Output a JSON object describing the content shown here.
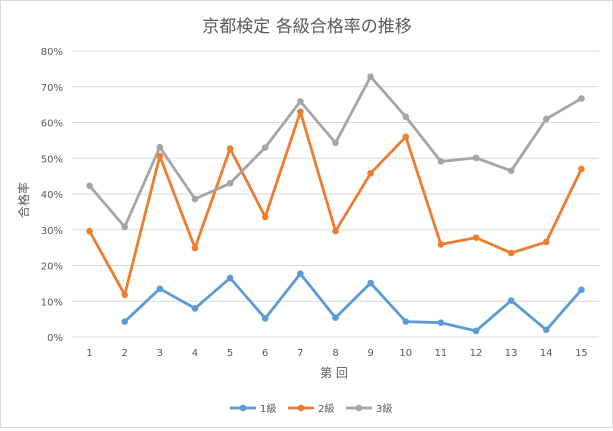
{
  "chart_data": {
    "type": "line",
    "title": "京都検定 各級合格率の推移",
    "xlabel": "第 回",
    "ylabel": "合格率",
    "categories": [
      "1",
      "2",
      "3",
      "4",
      "5",
      "6",
      "7",
      "8",
      "9",
      "10",
      "11",
      "12",
      "13",
      "14",
      "15"
    ],
    "ylim": [
      0,
      80
    ],
    "yticks": [
      "0%",
      "10%",
      "20%",
      "30%",
      "40%",
      "50%",
      "60%",
      "70%",
      "80%"
    ],
    "grid": true,
    "legend_position": "bottom",
    "series": [
      {
        "name": "1級",
        "color": "#5b9bd5",
        "values": [
          null,
          4.3,
          13.5,
          8.0,
          16.5,
          5.2,
          17.7,
          5.4,
          15.1,
          4.3,
          4.0,
          1.7,
          10.2,
          2.0,
          13.2
        ]
      },
      {
        "name": "2級",
        "color": "#ed7d31",
        "values": [
          29.6,
          11.8,
          50.6,
          24.9,
          52.7,
          33.6,
          63.0,
          29.6,
          45.8,
          56.0,
          25.9,
          27.8,
          23.5,
          26.6,
          47.0
        ]
      },
      {
        "name": "3級",
        "color": "#a5a5a5",
        "values": [
          42.3,
          30.8,
          53.1,
          38.6,
          43.0,
          53.0,
          65.9,
          54.3,
          72.8,
          61.6,
          49.1,
          50.1,
          46.5,
          61.0,
          66.7
        ]
      }
    ]
  }
}
